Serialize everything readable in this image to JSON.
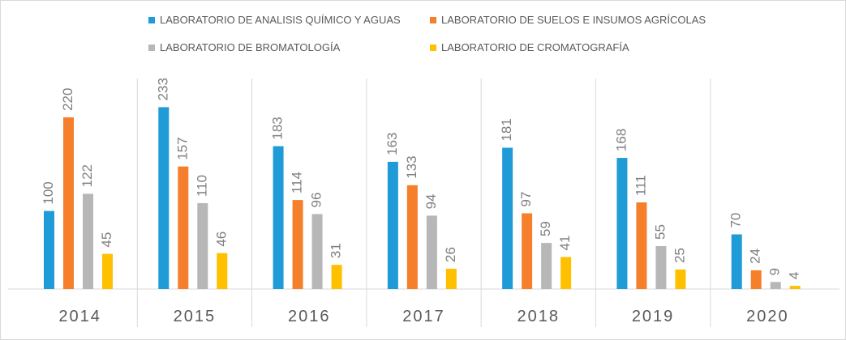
{
  "chart_data": {
    "type": "bar",
    "categories": [
      "2014",
      "2015",
      "2016",
      "2017",
      "2018",
      "2019",
      "2020"
    ],
    "series": [
      {
        "name": "LABORATORIO DE ANALISIS QUÍMICO Y AGUAS",
        "color": "#1f9bd7",
        "values": [
          100,
          233,
          183,
          163,
          181,
          168,
          70
        ]
      },
      {
        "name": "LABORATORIO DE SUELOS E INSUMOS AGRÍCOLAS",
        "color": "#f57f2a",
        "values": [
          220,
          157,
          114,
          133,
          97,
          111,
          24
        ]
      },
      {
        "name": "LABORATORIO DE BROMATOLOGÍA",
        "color": "#b7b7b7",
        "values": [
          122,
          110,
          96,
          94,
          59,
          55,
          9
        ]
      },
      {
        "name": "LABORATORIO DE CROMATOGRAFÍA",
        "color": "#ffc000",
        "values": [
          45,
          46,
          31,
          26,
          41,
          25,
          4
        ]
      }
    ],
    "ylim": [
      0,
      250
    ],
    "grid": false,
    "legend_position": "top",
    "data_labels": true
  }
}
